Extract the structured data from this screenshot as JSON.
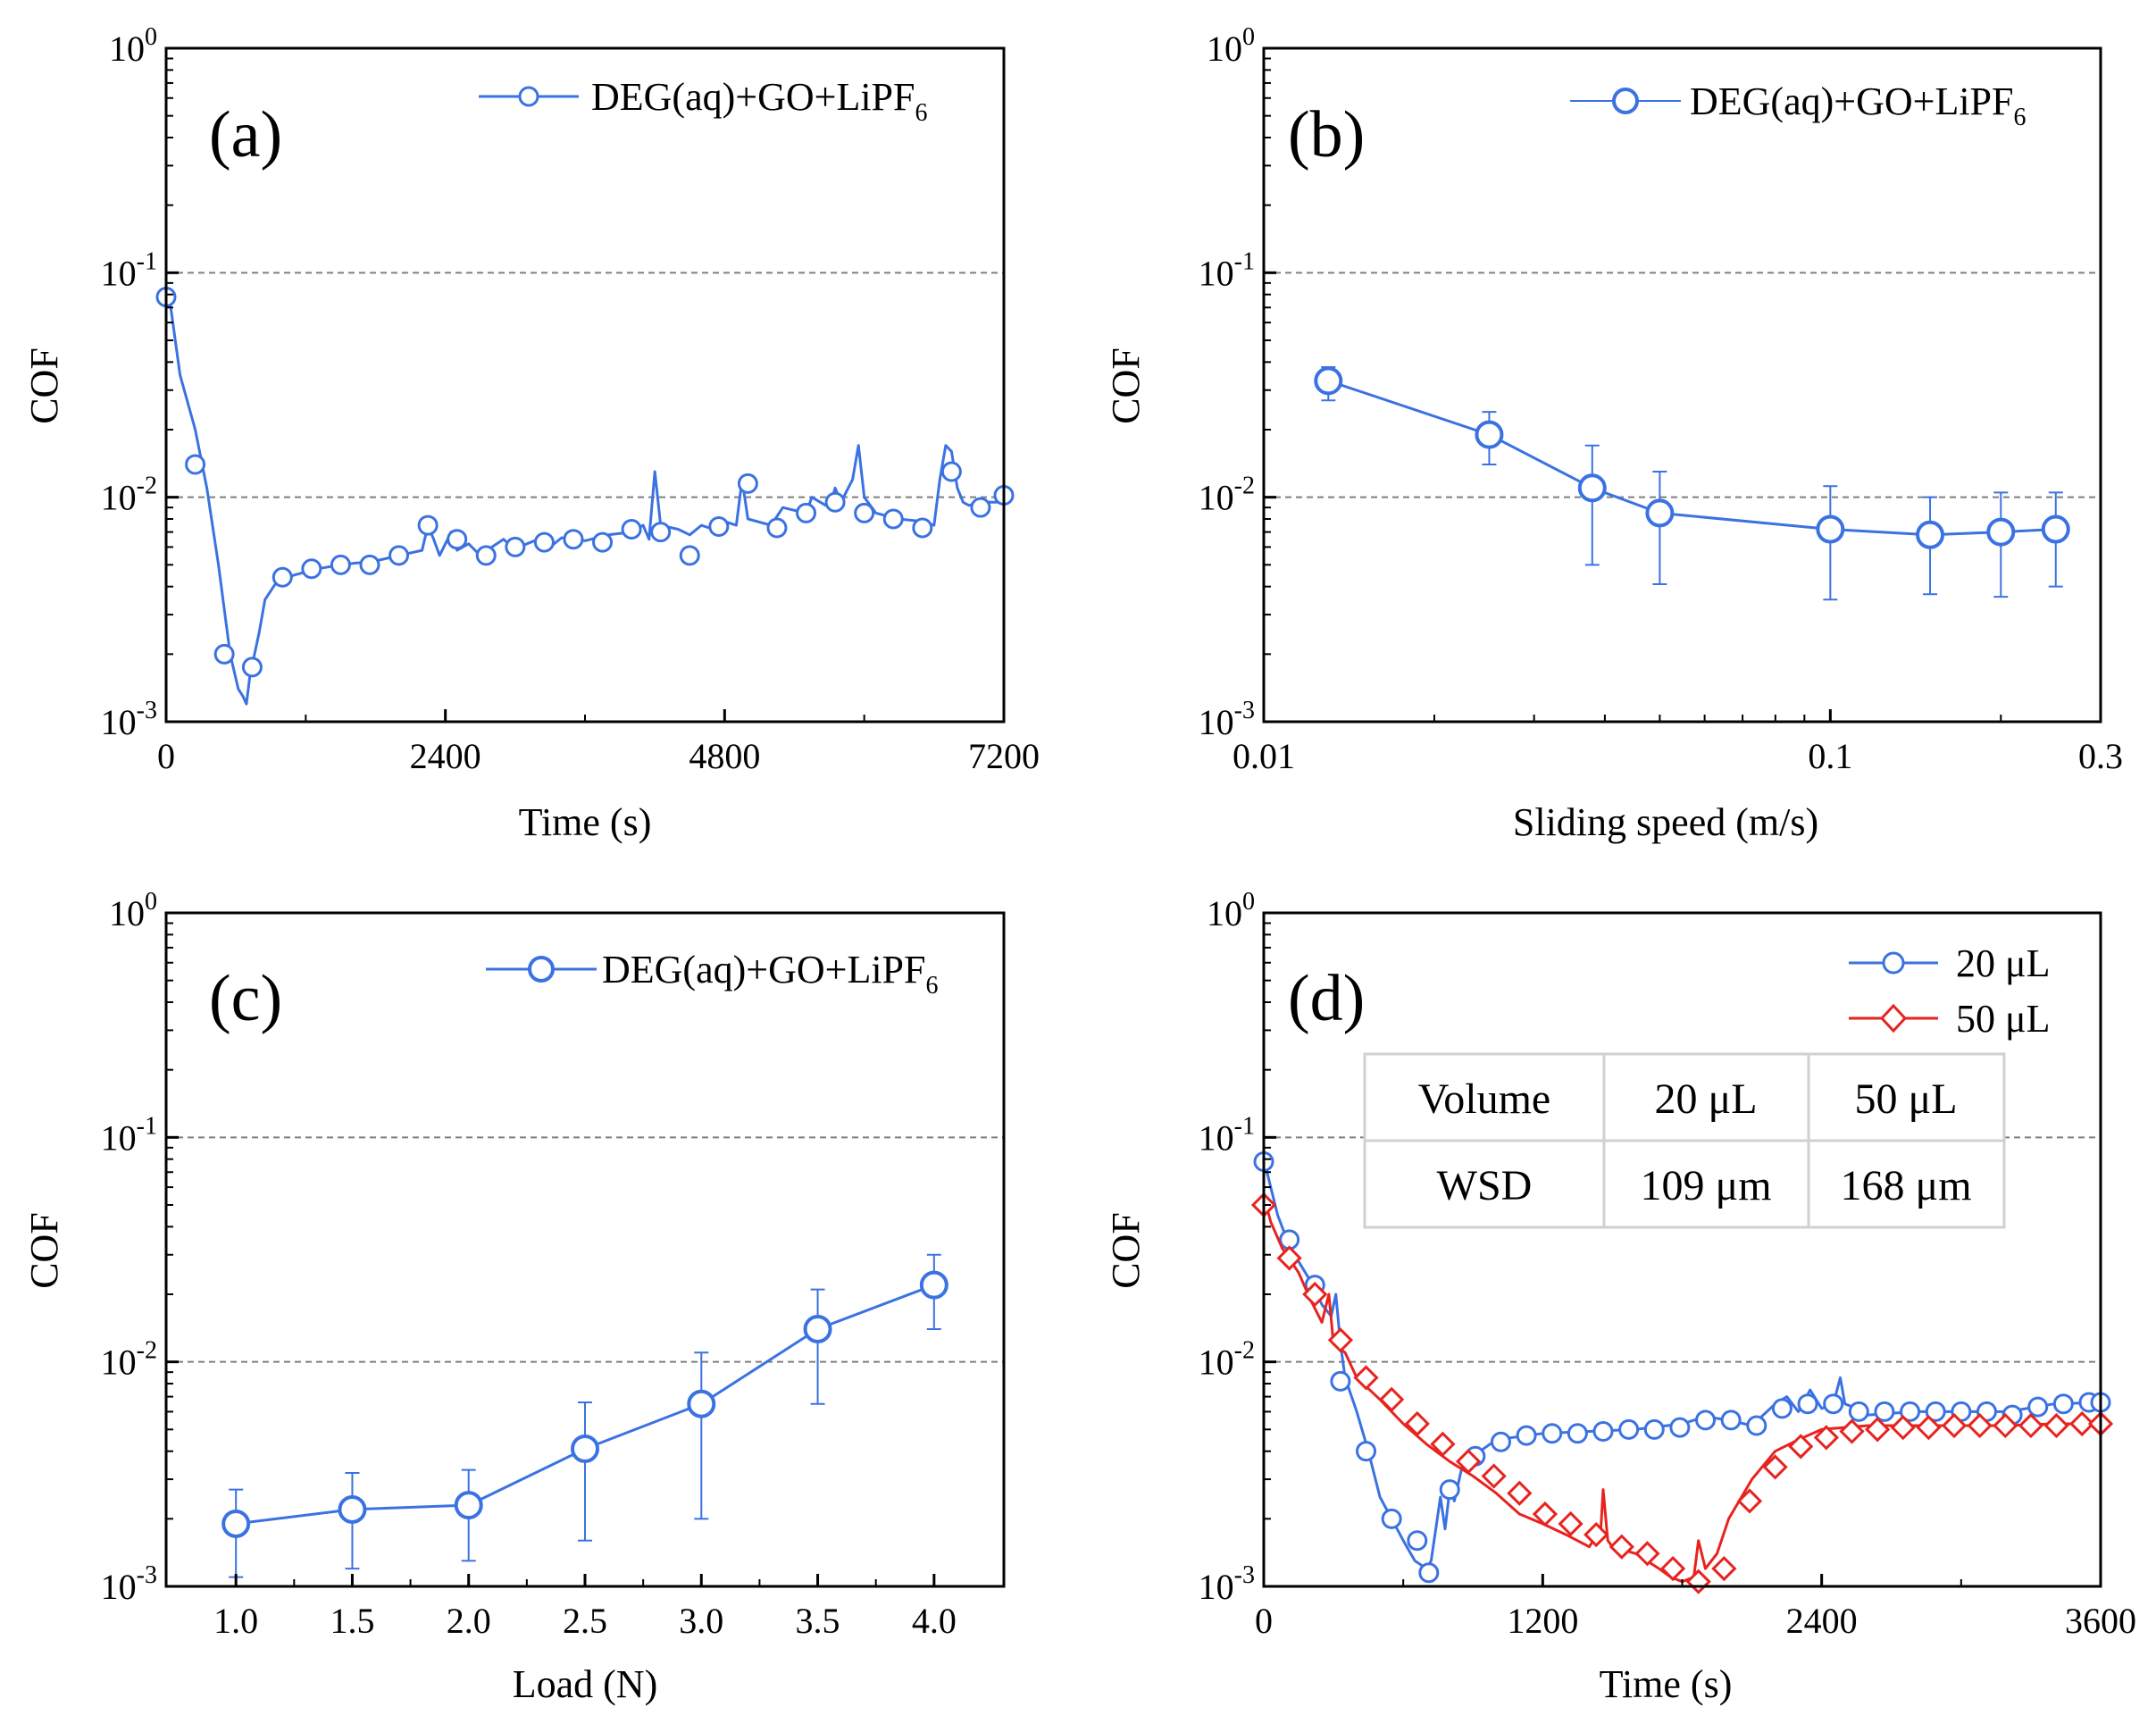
{
  "colors": {
    "blue": "#3b72e2",
    "red": "#e8231f",
    "grid": "#7f7f7f",
    "table_border": "#d0d0d0"
  },
  "chart_data": [
    {
      "type": "line",
      "panel_label": "(a)",
      "xlabel": "Time (s)",
      "ylabel": "COF",
      "xscale": "linear",
      "yscale": "log",
      "xlim": [
        0,
        7200
      ],
      "ylim": [
        0.001,
        1
      ],
      "xticks": [
        {
          "v": 0,
          "label": "0"
        },
        {
          "v": 2400,
          "label": "2400"
        },
        {
          "v": 4800,
          "label": "4800"
        },
        {
          "v": 7200,
          "label": "7200"
        }
      ],
      "yticks": [
        {
          "v": 0.001,
          "base": "10",
          "exp": "-3"
        },
        {
          "v": 0.01,
          "base": "10",
          "exp": "-2"
        },
        {
          "v": 0.1,
          "base": "10",
          "exp": "-1"
        },
        {
          "v": 1,
          "base": "10",
          "exp": "0"
        }
      ],
      "grid_y": [
        0.01,
        0.1
      ],
      "legend": {
        "main": "DEG(aq)+GO+LiPF",
        "sub": "6",
        "position": "top-right"
      },
      "series": [
        {
          "name": "DEG(aq)+GO+LiPF6",
          "color_key": "blue",
          "marker": "circle",
          "x": [
            0,
            40,
            120,
            250,
            350,
            450,
            550,
            620,
            660,
            690,
            720,
            760,
            800,
            850,
            950,
            1100,
            1300,
            1500,
            1800,
            2000,
            2200,
            2250,
            2300,
            2350,
            2450,
            2500,
            2600,
            2700,
            2800,
            2900,
            3000,
            3100,
            3200,
            3300,
            3400,
            3600,
            3800,
            4000,
            4100,
            4150,
            4200,
            4250,
            4400,
            4500,
            4600,
            4700,
            4800,
            4900,
            4950,
            5000,
            5200,
            5300,
            5500,
            5550,
            5700,
            5750,
            5800,
            5900,
            5950,
            6000,
            6100,
            6300,
            6500,
            6600,
            6650,
            6700,
            6750,
            6800,
            6850,
            6900,
            7000,
            7100,
            7200
          ],
          "y": [
            0.08,
            0.07,
            0.035,
            0.02,
            0.011,
            0.005,
            0.002,
            0.0014,
            0.0013,
            0.0012,
            0.0016,
            0.002,
            0.0025,
            0.0035,
            0.0042,
            0.0045,
            0.0048,
            0.005,
            0.0052,
            0.0055,
            0.0058,
            0.0075,
            0.0065,
            0.0055,
            0.007,
            0.0058,
            0.0062,
            0.0055,
            0.006,
            0.0065,
            0.0058,
            0.0062,
            0.0065,
            0.006,
            0.0066,
            0.0064,
            0.0068,
            0.007,
            0.0075,
            0.0065,
            0.013,
            0.0075,
            0.0072,
            0.0068,
            0.0075,
            0.0072,
            0.0078,
            0.0075,
            0.012,
            0.008,
            0.0075,
            0.009,
            0.0085,
            0.01,
            0.009,
            0.011,
            0.0095,
            0.012,
            0.017,
            0.01,
            0.0085,
            0.008,
            0.0078,
            0.0075,
            0.012,
            0.017,
            0.016,
            0.011,
            0.0095,
            0.0092,
            0.0095,
            0.0095,
            0.0095
          ],
          "markers_x": [
            0,
            250,
            500,
            740,
            1000,
            1250,
            1500,
            1750,
            2000,
            2250,
            2500,
            2750,
            3000,
            3250,
            3500,
            3750,
            4000,
            4250,
            4500,
            4750,
            5000,
            5250,
            5500,
            5750,
            6000,
            6250,
            6500,
            6750,
            7000,
            7200
          ],
          "markers_y": [
            0.078,
            0.014,
            0.002,
            0.00175,
            0.0044,
            0.0048,
            0.005,
            0.005,
            0.0055,
            0.0075,
            0.0065,
            0.0055,
            0.006,
            0.0063,
            0.0065,
            0.0063,
            0.0072,
            0.007,
            0.0055,
            0.0074,
            0.0115,
            0.0073,
            0.0085,
            0.0095,
            0.0085,
            0.008,
            0.0073,
            0.013,
            0.009,
            0.0102
          ]
        }
      ]
    },
    {
      "type": "line",
      "panel_label": "(b)",
      "xlabel": "Sliding speed (m/s)",
      "ylabel": "COF",
      "xscale": "log",
      "yscale": "log",
      "xlim": [
        0.01,
        0.3
      ],
      "ylim": [
        0.001,
        1
      ],
      "xticks": [
        {
          "v": 0.01,
          "label": "0.01"
        },
        {
          "v": 0.1,
          "label": "0.1"
        },
        {
          "v": 0.3,
          "label": "0.3"
        }
      ],
      "yticks": [
        {
          "v": 0.001,
          "base": "10",
          "exp": "-3"
        },
        {
          "v": 0.01,
          "base": "10",
          "exp": "-2"
        },
        {
          "v": 0.1,
          "base": "10",
          "exp": "-1"
        },
        {
          "v": 1,
          "base": "10",
          "exp": "0"
        }
      ],
      "grid_y": [
        0.01,
        0.1
      ],
      "legend": {
        "main": "DEG(aq)+GO+LiPF",
        "sub": "6",
        "position": "top-right"
      },
      "series": [
        {
          "name": "DEG(aq)+GO+LiPF6",
          "color_key": "blue",
          "marker": "circle",
          "x": [
            0.013,
            0.025,
            0.038,
            0.05,
            0.1,
            0.15,
            0.2,
            0.25
          ],
          "y": [
            0.033,
            0.019,
            0.011,
            0.0085,
            0.0072,
            0.0068,
            0.007,
            0.0072
          ],
          "err_low": [
            0.027,
            0.014,
            0.005,
            0.0041,
            0.0035,
            0.0037,
            0.0036,
            0.004
          ],
          "err_high": [
            0.038,
            0.024,
            0.017,
            0.013,
            0.0112,
            0.01,
            0.0105,
            0.0105
          ]
        }
      ]
    },
    {
      "type": "line",
      "panel_label": "(c)",
      "xlabel": "Load (N)",
      "ylabel": "COF",
      "xscale": "linear",
      "yscale": "log",
      "xlim": [
        0.7,
        4.3
      ],
      "ylim": [
        0.001,
        1
      ],
      "xticks": [
        {
          "v": 1.0,
          "label": "1.0"
        },
        {
          "v": 1.5,
          "label": "1.5"
        },
        {
          "v": 2.0,
          "label": "2.0"
        },
        {
          "v": 2.5,
          "label": "2.5"
        },
        {
          "v": 3.0,
          "label": "3.0"
        },
        {
          "v": 3.5,
          "label": "3.5"
        },
        {
          "v": 4.0,
          "label": "4.0"
        }
      ],
      "yticks": [
        {
          "v": 0.001,
          "base": "10",
          "exp": "-3"
        },
        {
          "v": 0.01,
          "base": "10",
          "exp": "-2"
        },
        {
          "v": 0.1,
          "base": "10",
          "exp": "-1"
        },
        {
          "v": 1,
          "base": "10",
          "exp": "0"
        }
      ],
      "grid_y": [
        0.01,
        0.1
      ],
      "legend": {
        "main": "DEG(aq)+GO+LiPF",
        "sub": "6",
        "position": "top-right"
      },
      "series": [
        {
          "name": "DEG(aq)+GO+LiPF6",
          "color_key": "blue",
          "marker": "circle",
          "x": [
            1.0,
            1.5,
            2.0,
            2.5,
            3.0,
            3.5,
            4.0
          ],
          "y": [
            0.0019,
            0.0022,
            0.0023,
            0.0041,
            0.0065,
            0.014,
            0.022
          ],
          "err_low": [
            0.0011,
            0.0012,
            0.0013,
            0.0016,
            0.002,
            0.0065,
            0.014
          ],
          "err_high": [
            0.0027,
            0.0032,
            0.0033,
            0.0066,
            0.011,
            0.021,
            0.03
          ]
        }
      ]
    },
    {
      "type": "line",
      "panel_label": "(d)",
      "xlabel": "Time (s)",
      "ylabel": "COF",
      "xscale": "linear",
      "yscale": "log",
      "xlim": [
        0,
        3600
      ],
      "ylim": [
        0.001,
        1
      ],
      "xticks": [
        {
          "v": 0,
          "label": "0"
        },
        {
          "v": 1200,
          "label": "1200"
        },
        {
          "v": 2400,
          "label": "2400"
        },
        {
          "v": 3600,
          "label": "3600"
        }
      ],
      "yticks": [
        {
          "v": 0.001,
          "base": "10",
          "exp": "-3"
        },
        {
          "v": 0.01,
          "base": "10",
          "exp": "-2"
        },
        {
          "v": 0.1,
          "base": "10",
          "exp": "-1"
        },
        {
          "v": 1,
          "base": "10",
          "exp": "0"
        }
      ],
      "grid_y": [
        0.01,
        0.1
      ],
      "legend_entries": [
        {
          "label": "20 μL",
          "color_key": "blue",
          "marker": "circle"
        },
        {
          "label": "50 μL",
          "color_key": "red",
          "marker": "diamond"
        }
      ],
      "table": {
        "header": [
          "Volume",
          "20 μL",
          "50 μL"
        ],
        "rows": [
          [
            "WSD",
            "109 μm",
            "168 μm"
          ]
        ]
      },
      "series": [
        {
          "name": "20 μL",
          "color_key": "blue",
          "marker": "circle",
          "x": [
            0,
            30,
            60,
            100,
            150,
            200,
            250,
            290,
            310,
            330,
            350,
            400,
            450,
            500,
            550,
            600,
            650,
            700,
            720,
            740,
            760,
            780,
            800,
            820,
            850,
            900,
            1000,
            1200,
            1400,
            1600,
            1800,
            1900,
            2000,
            2100,
            2200,
            2250,
            2300,
            2350,
            2400,
            2450,
            2480,
            2500,
            2550,
            2600,
            2800,
            3000,
            3200,
            3400,
            3600
          ],
          "y": [
            0.08,
            0.06,
            0.045,
            0.035,
            0.028,
            0.023,
            0.018,
            0.016,
            0.02,
            0.012,
            0.0085,
            0.006,
            0.004,
            0.0025,
            0.002,
            0.0016,
            0.0013,
            0.0012,
            0.0013,
            0.0018,
            0.0025,
            0.0018,
            0.0027,
            0.0024,
            0.0033,
            0.0038,
            0.0045,
            0.0048,
            0.0049,
            0.005,
            0.0053,
            0.0057,
            0.0055,
            0.0052,
            0.0065,
            0.007,
            0.006,
            0.0075,
            0.0062,
            0.0065,
            0.0085,
            0.0065,
            0.0062,
            0.0058,
            0.006,
            0.006,
            0.006,
            0.0065,
            0.0066
          ],
          "markers_x": [
            0,
            110,
            220,
            330,
            440,
            550,
            660,
            710,
            800,
            910,
            1020,
            1130,
            1240,
            1350,
            1460,
            1570,
            1680,
            1790,
            1900,
            2010,
            2120,
            2230,
            2340,
            2450,
            2560,
            2670,
            2780,
            2890,
            3000,
            3110,
            3220,
            3330,
            3440,
            3550,
            3600
          ],
          "markers_y": [
            0.078,
            0.035,
            0.022,
            0.0082,
            0.004,
            0.002,
            0.0016,
            0.00115,
            0.0027,
            0.0038,
            0.0044,
            0.0047,
            0.0048,
            0.0048,
            0.0049,
            0.005,
            0.005,
            0.0051,
            0.0055,
            0.0055,
            0.0052,
            0.0062,
            0.0065,
            0.0065,
            0.006,
            0.006,
            0.006,
            0.006,
            0.006,
            0.006,
            0.0058,
            0.0063,
            0.0065,
            0.0066,
            0.0066
          ]
        },
        {
          "name": "50 μL",
          "color_key": "red",
          "marker": "diamond",
          "x": [
            0,
            30,
            80,
            150,
            200,
            250,
            280,
            300,
            350,
            400,
            500,
            600,
            700,
            800,
            900,
            1000,
            1100,
            1200,
            1300,
            1400,
            1450,
            1460,
            1480,
            1500,
            1600,
            1700,
            1750,
            1800,
            1850,
            1870,
            1900,
            1950,
            2000,
            2100,
            2200,
            2300,
            2400,
            2600,
            2800,
            3000,
            3200,
            3400,
            3600
          ],
          "y": [
            0.055,
            0.042,
            0.032,
            0.025,
            0.019,
            0.015,
            0.02,
            0.012,
            0.011,
            0.0085,
            0.0068,
            0.0053,
            0.0043,
            0.0036,
            0.0031,
            0.0026,
            0.0021,
            0.0019,
            0.0017,
            0.0015,
            0.0018,
            0.0027,
            0.0016,
            0.0015,
            0.0014,
            0.0012,
            0.0011,
            0.00105,
            0.0011,
            0.0016,
            0.0012,
            0.0014,
            0.002,
            0.003,
            0.004,
            0.0045,
            0.005,
            0.0052,
            0.0052,
            0.0052,
            0.0052,
            0.0053,
            0.0053
          ],
          "markers_x": [
            0,
            110,
            220,
            330,
            440,
            550,
            660,
            770,
            880,
            990,
            1100,
            1210,
            1320,
            1430,
            1540,
            1650,
            1760,
            1870,
            1980,
            2090,
            2200,
            2310,
            2420,
            2530,
            2640,
            2750,
            2860,
            2970,
            3080,
            3190,
            3300,
            3410,
            3520,
            3600
          ],
          "markers_y": [
            0.05,
            0.029,
            0.02,
            0.0125,
            0.0085,
            0.0068,
            0.0053,
            0.0043,
            0.0036,
            0.0031,
            0.0026,
            0.0021,
            0.0019,
            0.0017,
            0.0015,
            0.0014,
            0.0012,
            0.00105,
            0.0012,
            0.0024,
            0.0034,
            0.0042,
            0.0046,
            0.0049,
            0.005,
            0.0051,
            0.0051,
            0.0052,
            0.0052,
            0.0052,
            0.0052,
            0.0052,
            0.0053,
            0.0053
          ]
        }
      ]
    }
  ]
}
